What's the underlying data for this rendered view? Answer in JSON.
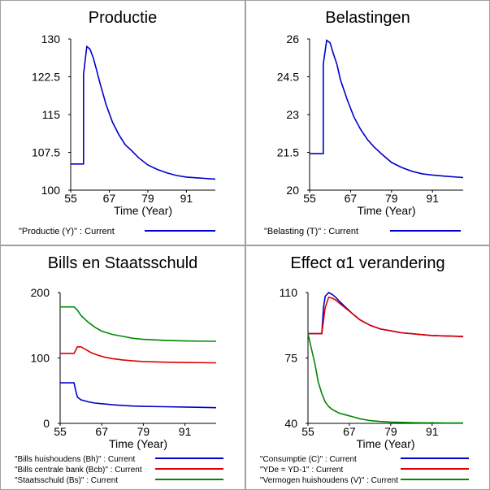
{
  "charts": [
    {
      "title": "Productie",
      "xlabel": "Time (Year)",
      "x_ticks": [
        "55",
        "67",
        "79",
        "91"
      ],
      "y_ticks": [
        "130",
        "122.5",
        "115",
        "107.5",
        "100"
      ],
      "legend": [
        {
          "text": "\"Productie (Y)\" : Current",
          "color": "#0000cc"
        }
      ]
    },
    {
      "title": "Belastingen",
      "xlabel": "Time (Year)",
      "x_ticks": [
        "55",
        "67",
        "79",
        "91"
      ],
      "y_ticks": [
        "26",
        "24.5",
        "23",
        "21.5",
        "20"
      ],
      "legend": [
        {
          "text": "\"Belasting (T)\" : Current",
          "color": "#0000cc"
        }
      ]
    },
    {
      "title": "Bills en Staatsschuld",
      "xlabel": "Time (Year)",
      "x_ticks": [
        "55",
        "67",
        "79",
        "91"
      ],
      "y_ticks": [
        "200",
        "100",
        "0"
      ],
      "legend": [
        {
          "text": "\"Bills huishoudens (Bh)\" : Current",
          "color": "#0000cc"
        },
        {
          "text": "\"Bills centrale bank (Bcb)\" : Current",
          "color": "#dd0000"
        },
        {
          "text": "\"Staatsschuld (Bs)\" : Current",
          "color": "#008800"
        }
      ]
    },
    {
      "title": "Effect α1 verandering",
      "xlabel": "Time (Year)",
      "x_ticks": [
        "55",
        "67",
        "79",
        "91"
      ],
      "y_ticks": [
        "110",
        "75",
        "40"
      ],
      "legend": [
        {
          "text": "\"Consumptie (C)\" : Current",
          "color": "#0000cc"
        },
        {
          "text": "\"YDe = YD-1\" : Current",
          "color": "#dd0000"
        },
        {
          "text": "\"Vermogen huishoudens (V)\" : Current",
          "color": "#008800"
        }
      ]
    }
  ],
  "chart_data": [
    {
      "type": "line",
      "title": "Productie",
      "xlabel": "Time (Year)",
      "ylabel": "",
      "xlim": [
        55,
        100
      ],
      "ylim": [
        100,
        130
      ],
      "series": [
        {
          "name": "\"Productie (Y)\" : Current",
          "color": "#0000cc",
          "x": [
            55,
            59,
            59,
            60,
            61,
            62,
            63,
            64,
            66,
            68,
            70,
            72,
            74,
            76,
            79,
            82,
            85,
            88,
            91,
            95,
            100
          ],
          "y": [
            105.2,
            105.2,
            123,
            128.5,
            128,
            126.3,
            124,
            121.5,
            117,
            113.5,
            111,
            109,
            107.8,
            106.5,
            105,
            104.1,
            103.4,
            102.9,
            102.6,
            102.4,
            102.2
          ]
        }
      ]
    },
    {
      "type": "line",
      "title": "Belastingen",
      "xlabel": "Time (Year)",
      "ylabel": "",
      "xlim": [
        55,
        100
      ],
      "ylim": [
        20,
        26
      ],
      "series": [
        {
          "name": "\"Belasting (T)\" : Current",
          "color": "#0000cc",
          "x": [
            55,
            59,
            59,
            60,
            61,
            62,
            63,
            64,
            66,
            68,
            70,
            72,
            74,
            76,
            79,
            82,
            85,
            88,
            91,
            95,
            100
          ],
          "y": [
            21.45,
            21.45,
            25,
            25.95,
            25.85,
            25.4,
            25,
            24.4,
            23.6,
            22.9,
            22.4,
            22,
            21.7,
            21.45,
            21.1,
            20.9,
            20.75,
            20.65,
            20.6,
            20.55,
            20.5
          ]
        }
      ]
    },
    {
      "type": "line",
      "title": "Bills en Staatsschuld",
      "xlabel": "Time (Year)",
      "ylabel": "",
      "xlim": [
        55,
        100
      ],
      "ylim": [
        0,
        200
      ],
      "series": [
        {
          "name": "\"Bills huishoudens (Bh)\" : Current",
          "color": "#0000cc",
          "x": [
            55,
            59,
            59.5,
            60,
            61,
            63,
            65,
            67,
            70,
            73,
            76,
            79,
            85,
            91,
            100
          ],
          "y": [
            62,
            62,
            50,
            40,
            36,
            33,
            31,
            30,
            28.5,
            27.5,
            26.5,
            26,
            25.5,
            25,
            24
          ]
        },
        {
          "name": "\"Bills centrale bank (Bcb)\" : Current",
          "color": "#dd0000",
          "x": [
            55,
            59,
            60,
            61,
            62,
            64,
            66,
            68,
            70,
            73,
            76,
            79,
            85,
            91,
            100
          ],
          "y": [
            107,
            107,
            117,
            117,
            114,
            108,
            104,
            101,
            99,
            97,
            95.5,
            94.5,
            93.5,
            93,
            92.5
          ]
        },
        {
          "name": "\"Staatsschuld (Bs)\" : Current",
          "color": "#008800",
          "x": [
            55,
            59,
            60,
            61,
            63,
            65,
            67,
            70,
            73,
            76,
            79,
            85,
            91,
            100
          ],
          "y": [
            178,
            178,
            173,
            165,
            155,
            147,
            141,
            136,
            133,
            130,
            128.5,
            127,
            126,
            125.5
          ]
        }
      ]
    },
    {
      "type": "line",
      "title": "Effect α1 verandering",
      "xlabel": "Time (Year)",
      "ylabel": "",
      "xlim": [
        55,
        100
      ],
      "ylim": [
        40,
        110
      ],
      "series": [
        {
          "name": "\"Consumptie (C)\" : Current",
          "color": "#0000cc",
          "x": [
            55,
            59,
            59.5,
            60,
            61,
            62,
            63,
            64,
            66,
            68,
            70,
            73,
            76,
            79,
            82,
            85,
            88,
            91,
            95,
            100
          ],
          "y": [
            88,
            88,
            102,
            108,
            110,
            109,
            107.5,
            105.5,
            102,
            98.5,
            95.5,
            92.5,
            90.5,
            89.5,
            88.5,
            88,
            87.5,
            87,
            86.8,
            86.5
          ]
        },
        {
          "name": "\"YDe = YD-1\" : Current",
          "color": "#dd0000",
          "x": [
            55,
            59,
            60,
            61,
            62,
            63,
            64,
            66,
            68,
            70,
            73,
            76,
            79,
            82,
            85,
            88,
            91,
            95,
            100
          ],
          "y": [
            88,
            88,
            102,
            107.5,
            107,
            106,
            104.5,
            101.5,
            98.5,
            95.5,
            92.5,
            90.5,
            89.5,
            88.5,
            88,
            87.5,
            87,
            86.8,
            86.5
          ]
        },
        {
          "name": "\"Vermogen huishoudens (V)\" : Current",
          "color": "#008800",
          "x": [
            55,
            56,
            57,
            58,
            59,
            60,
            61,
            62,
            64,
            66,
            68,
            70,
            73,
            76,
            79,
            82,
            85,
            88,
            91,
            95,
            100
          ],
          "y": [
            88,
            80,
            72,
            62,
            56,
            51.5,
            49,
            47.5,
            45.5,
            44.5,
            43.5,
            42.5,
            41.5,
            41,
            40.7,
            40.5,
            40.4,
            40.3,
            40.3,
            40.2,
            40.2
          ]
        }
      ]
    }
  ]
}
